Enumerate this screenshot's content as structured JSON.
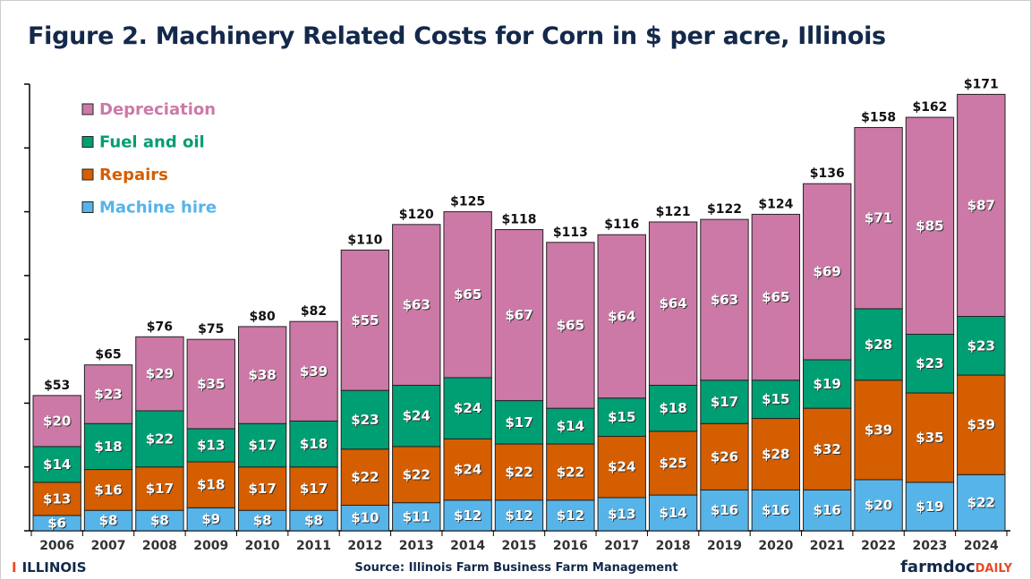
{
  "chart_data": {
    "type": "bar",
    "stacked": true,
    "title": "Figure 2. Machinery Related Costs for Corn in $ per acre, Illinois",
    "xlabel": "",
    "ylabel": "",
    "ylim": [
      0,
      175
    ],
    "ytick_step": 25,
    "ytick_labels_shown": false,
    "grid": false,
    "legend_position": "top-left",
    "categories": [
      "2006",
      "2007",
      "2008",
      "2009",
      "2010",
      "2011",
      "2012",
      "2013",
      "2014",
      "2015",
      "2016",
      "2017",
      "2018",
      "2019",
      "2020",
      "2021",
      "2022",
      "2023",
      "2024"
    ],
    "series": [
      {
        "name": "Machine hire",
        "color": "#56b4e9",
        "values": [
          6,
          8,
          8,
          9,
          8,
          8,
          10,
          11,
          12,
          12,
          12,
          13,
          14,
          16,
          16,
          16,
          20,
          19,
          22
        ]
      },
      {
        "name": "Repairs",
        "color": "#d55e00",
        "values": [
          13,
          16,
          17,
          18,
          17,
          17,
          22,
          22,
          24,
          22,
          22,
          24,
          25,
          26,
          28,
          32,
          39,
          35,
          39
        ]
      },
      {
        "name": "Fuel and oil",
        "color": "#009e73",
        "values": [
          14,
          18,
          22,
          13,
          17,
          18,
          23,
          24,
          24,
          17,
          14,
          15,
          18,
          17,
          15,
          19,
          28,
          23,
          23
        ]
      },
      {
        "name": "Depreciation",
        "color": "#cc79a7",
        "values": [
          20,
          23,
          29,
          35,
          38,
          39,
          55,
          63,
          65,
          67,
          65,
          64,
          64,
          63,
          65,
          69,
          71,
          85,
          87
        ]
      }
    ],
    "totals": [
      53,
      65,
      76,
      75,
      80,
      82,
      110,
      120,
      125,
      118,
      113,
      116,
      121,
      122,
      124,
      136,
      158,
      162,
      171
    ],
    "value_prefix": "$"
  },
  "footer": {
    "source": "Source: Illinois Farm Business Farm Management",
    "left_logo": "ILLINOIS",
    "right_logo_a": "farmdoc",
    "right_logo_b": "DAILY"
  }
}
